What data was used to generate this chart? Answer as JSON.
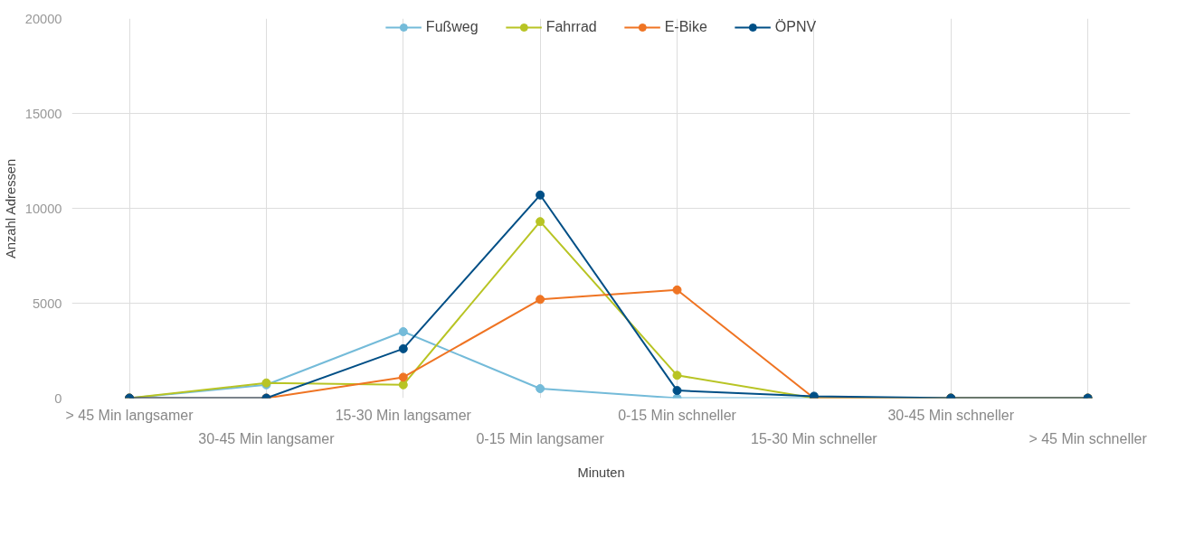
{
  "chart_data": {
    "type": "line",
    "xlabel": "Minuten",
    "ylabel": "Anzahl Adressen",
    "categories": [
      "> 45 Min langsamer",
      "30-45 Min langsamer",
      "15-30 Min langsamer",
      "0-15 Min langsamer",
      "0-15 Min schneller",
      "15-30 Min schneller",
      "30-45 Min schneller",
      "> 45 Min schneller"
    ],
    "series": [
      {
        "name": "Fußweg",
        "color": "#74bbd9",
        "values": [
          0,
          700,
          3500,
          500,
          0,
          0,
          0,
          0
        ]
      },
      {
        "name": "Fahrrad",
        "color": "#b8c424",
        "values": [
          0,
          800,
          700,
          9300,
          1200,
          0,
          0,
          0
        ]
      },
      {
        "name": "E-Bike",
        "color": "#ef7423",
        "values": [
          0,
          0,
          1100,
          5200,
          5700,
          0,
          0,
          0
        ]
      },
      {
        "name": "ÖPNV",
        "color": "#004f86",
        "values": [
          0,
          0,
          2600,
          10700,
          400,
          100,
          0,
          0
        ]
      }
    ],
    "ylim": [
      0,
      20000
    ],
    "yticks": [
      0,
      5000,
      10000,
      15000,
      20000
    ],
    "grid": true,
    "legend": "top",
    "marker": "circle",
    "line_style": "solid"
  }
}
